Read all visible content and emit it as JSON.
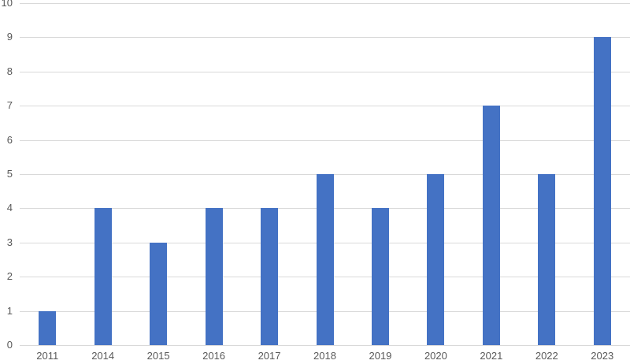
{
  "chart_data": {
    "type": "bar",
    "categories": [
      "2011",
      "2014",
      "2015",
      "2016",
      "2017",
      "2018",
      "2019",
      "2020",
      "2021",
      "2022",
      "2023"
    ],
    "values": [
      1,
      4,
      3,
      4,
      4,
      5,
      4,
      5,
      7,
      5,
      9
    ],
    "title": "",
    "xlabel": "",
    "ylabel": "",
    "ylim": [
      0,
      10
    ],
    "y_tick_step": 1,
    "y_tick_labels": [
      "0",
      "1",
      "2",
      "3",
      "4",
      "5",
      "6",
      "7",
      "8",
      "9",
      "10"
    ],
    "grid": true,
    "legend": false,
    "data_labels": false,
    "colors": {
      "bar_fill": "#4472C4",
      "gridline": "#D9D9D9",
      "axis_line": "#D9D9D9",
      "tick_label": "#595959",
      "background": "#FFFFFF"
    }
  }
}
